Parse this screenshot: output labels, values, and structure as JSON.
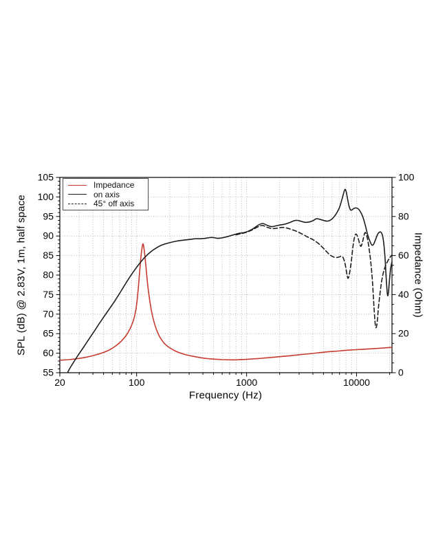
{
  "page": {
    "background": "#ffffff"
  },
  "chart_data": {
    "type": "line",
    "title": "",
    "x_axis": {
      "label": "Frequency (Hz)",
      "scale": "log",
      "min": 20,
      "max": 21000,
      "major_ticks": [
        20,
        100,
        1000,
        10000
      ],
      "tick_labels": [
        "20",
        "100",
        "1000",
        "10000"
      ],
      "grid": true
    },
    "y_axis_left": {
      "label": "SPL (dB) @ 2.83V, 1m, half space",
      "min": 55,
      "max": 105,
      "major_step": 5,
      "minor_step": 1,
      "tick_labels": [
        "55",
        "60",
        "65",
        "70",
        "75",
        "80",
        "85",
        "90",
        "95",
        "100",
        "105"
      ],
      "grid": true
    },
    "y_axis_right": {
      "label": "Impedance (Ohm)",
      "min": 0,
      "max": 100,
      "major_step": 20,
      "minor_step": 5,
      "tick_labels": [
        "0",
        "20",
        "40",
        "60",
        "80",
        "100"
      ]
    },
    "legend": {
      "position": "top-left",
      "border_color": "#4d4d4d",
      "background": "#ffffff"
    },
    "colors": {
      "impedance": "#c63a2f",
      "spl": "#1c1c1c",
      "grid": "#a6a6a6",
      "axis": "#000000"
    },
    "series": [
      {
        "name": "impedance",
        "label": "Impedance",
        "axis": "right",
        "unit": "Ohm",
        "line_style": "solid",
        "color_key": "impedance",
        "points": [
          [
            20,
            6.4
          ],
          [
            24,
            6.7
          ],
          [
            28,
            7.1
          ],
          [
            33,
            7.7
          ],
          [
            38,
            8.4
          ],
          [
            44,
            9.4
          ],
          [
            50,
            10.4
          ],
          [
            57,
            11.8
          ],
          [
            64,
            13.6
          ],
          [
            72,
            16.0
          ],
          [
            80,
            19.0
          ],
          [
            87,
            22.5
          ],
          [
            93,
            26.5
          ],
          [
            97,
            30.5
          ],
          [
            100,
            35.0
          ],
          [
            103,
            42.0
          ],
          [
            106,
            50.5
          ],
          [
            109,
            58.5
          ],
          [
            112,
            64.0
          ],
          [
            114,
            66.0
          ],
          [
            116,
            64.5
          ],
          [
            119,
            59.5
          ],
          [
            122,
            53.0
          ],
          [
            126,
            45.0
          ],
          [
            131,
            37.5
          ],
          [
            137,
            31.0
          ],
          [
            144,
            25.8
          ],
          [
            152,
            21.8
          ],
          [
            162,
            18.4
          ],
          [
            175,
            15.6
          ],
          [
            190,
            13.6
          ],
          [
            210,
            12.0
          ],
          [
            235,
            10.6
          ],
          [
            265,
            9.6
          ],
          [
            300,
            8.8
          ],
          [
            340,
            8.2
          ],
          [
            390,
            7.6
          ],
          [
            450,
            7.2
          ],
          [
            520,
            6.9
          ],
          [
            600,
            6.7
          ],
          [
            700,
            6.6
          ],
          [
            800,
            6.6
          ],
          [
            950,
            6.8
          ],
          [
            1100,
            7.0
          ],
          [
            1300,
            7.3
          ],
          [
            1600,
            7.7
          ],
          [
            2000,
            8.2
          ],
          [
            2500,
            8.7
          ],
          [
            3000,
            9.2
          ],
          [
            3700,
            9.7
          ],
          [
            4500,
            10.2
          ],
          [
            5500,
            10.7
          ],
          [
            6800,
            11.1
          ],
          [
            8200,
            11.5
          ],
          [
            10000,
            11.8
          ],
          [
            12500,
            12.1
          ],
          [
            15000,
            12.4
          ],
          [
            18000,
            12.7
          ],
          [
            21000,
            13.0
          ]
        ]
      },
      {
        "name": "on_axis",
        "label": "on axis",
        "axis": "left",
        "unit": "dB",
        "line_style": "solid",
        "color_key": "spl",
        "points": [
          [
            23.5,
            55.0
          ],
          [
            25,
            56.4
          ],
          [
            27,
            57.9
          ],
          [
            30,
            59.9
          ],
          [
            33,
            61.6
          ],
          [
            36,
            63.2
          ],
          [
            40,
            65.1
          ],
          [
            45,
            67.3
          ],
          [
            50,
            69.2
          ],
          [
            56,
            71.2
          ],
          [
            63,
            73.3
          ],
          [
            71,
            75.6
          ],
          [
            80,
            78.0
          ],
          [
            90,
            80.2
          ],
          [
            100,
            82.0
          ],
          [
            110,
            83.5
          ],
          [
            120,
            84.7
          ],
          [
            135,
            86.0
          ],
          [
            150,
            86.9
          ],
          [
            170,
            87.7
          ],
          [
            200,
            88.3
          ],
          [
            230,
            88.7
          ],
          [
            260,
            88.9
          ],
          [
            300,
            89.1
          ],
          [
            340,
            89.3
          ],
          [
            380,
            89.3
          ],
          [
            420,
            89.4
          ],
          [
            460,
            89.6
          ],
          [
            500,
            89.6
          ],
          [
            545,
            89.4
          ],
          [
            590,
            89.5
          ],
          [
            640,
            89.7
          ],
          [
            700,
            90.0
          ],
          [
            780,
            90.4
          ],
          [
            860,
            90.7
          ],
          [
            950,
            90.9
          ],
          [
            1050,
            91.3
          ],
          [
            1150,
            91.9
          ],
          [
            1280,
            92.8
          ],
          [
            1400,
            93.2
          ],
          [
            1550,
            92.7
          ],
          [
            1700,
            92.4
          ],
          [
            1850,
            92.6
          ],
          [
            2000,
            92.8
          ],
          [
            2200,
            93.0
          ],
          [
            2450,
            93.4
          ],
          [
            2700,
            93.9
          ],
          [
            2900,
            94.0
          ],
          [
            3100,
            93.8
          ],
          [
            3400,
            93.5
          ],
          [
            3700,
            93.6
          ],
          [
            4000,
            93.9
          ],
          [
            4300,
            94.4
          ],
          [
            4600,
            94.3
          ],
          [
            5000,
            94.0
          ],
          [
            5400,
            93.8
          ],
          [
            5800,
            94.1
          ],
          [
            6200,
            94.8
          ],
          [
            6600,
            95.9
          ],
          [
            7000,
            97.3
          ],
          [
            7400,
            99.6
          ],
          [
            7800,
            101.8
          ],
          [
            8000,
            101.6
          ],
          [
            8200,
            100.2
          ],
          [
            8500,
            97.9
          ],
          [
            8800,
            96.7
          ],
          [
            9100,
            96.7
          ],
          [
            9400,
            97.0
          ],
          [
            9800,
            97.2
          ],
          [
            10300,
            97.0
          ],
          [
            10800,
            96.3
          ],
          [
            11400,
            94.9
          ],
          [
            12000,
            92.8
          ],
          [
            12600,
            90.4
          ],
          [
            13200,
            88.7
          ],
          [
            13800,
            87.7
          ],
          [
            14300,
            87.9
          ],
          [
            14800,
            88.9
          ],
          [
            15400,
            90.2
          ],
          [
            16000,
            90.9
          ],
          [
            16600,
            91.0
          ],
          [
            17100,
            90.4
          ],
          [
            17600,
            88.6
          ],
          [
            18100,
            84.9
          ],
          [
            18500,
            80.4
          ],
          [
            18900,
            76.2
          ],
          [
            19200,
            74.7
          ],
          [
            19500,
            75.6
          ],
          [
            19900,
            78.6
          ],
          [
            20400,
            81.6
          ],
          [
            21000,
            83.5
          ]
        ]
      },
      {
        "name": "off_axis_45",
        "label": "45° off axis",
        "axis": "left",
        "unit": "dB",
        "line_style": "dashed",
        "color_key": "spl",
        "points": [
          [
            800,
            90.3
          ],
          [
            950,
            90.8
          ],
          [
            1050,
            91.2
          ],
          [
            1150,
            91.7
          ],
          [
            1280,
            92.4
          ],
          [
            1400,
            92.7
          ],
          [
            1550,
            92.2
          ],
          [
            1700,
            91.9
          ],
          [
            1900,
            92.0
          ],
          [
            2100,
            92.2
          ],
          [
            2350,
            92.0
          ],
          [
            2600,
            91.6
          ],
          [
            2900,
            91.1
          ],
          [
            3200,
            90.5
          ],
          [
            3500,
            89.9
          ],
          [
            3800,
            89.4
          ],
          [
            4100,
            88.9
          ],
          [
            4500,
            88.1
          ],
          [
            4900,
            87.1
          ],
          [
            5300,
            86.1
          ],
          [
            5700,
            85.2
          ],
          [
            6100,
            84.7
          ],
          [
            6500,
            84.5
          ],
          [
            6900,
            84.6
          ],
          [
            7300,
            84.8
          ],
          [
            7600,
            84.3
          ],
          [
            7900,
            82.6
          ],
          [
            8200,
            80.0
          ],
          [
            8400,
            79.2
          ],
          [
            8700,
            81.0
          ],
          [
            9000,
            84.0
          ],
          [
            9300,
            87.5
          ],
          [
            9600,
            89.8
          ],
          [
            9900,
            90.5
          ],
          [
            10300,
            89.6
          ],
          [
            10700,
            87.9
          ],
          [
            11000,
            87.4
          ],
          [
            11400,
            88.8
          ],
          [
            11800,
            90.6
          ],
          [
            12100,
            90.8
          ],
          [
            12500,
            89.6
          ],
          [
            12900,
            87.4
          ],
          [
            13400,
            83.9
          ],
          [
            13900,
            78.9
          ],
          [
            14400,
            71.9
          ],
          [
            14800,
            67.3
          ],
          [
            15100,
            66.6
          ],
          [
            15400,
            68.0
          ],
          [
            15800,
            71.5
          ],
          [
            16300,
            75.0
          ],
          [
            16800,
            77.9
          ],
          [
            17400,
            80.2
          ],
          [
            18000,
            81.7
          ],
          [
            18700,
            82.9
          ],
          [
            19400,
            83.8
          ],
          [
            20100,
            84.5
          ],
          [
            21000,
            85.2
          ]
        ]
      }
    ]
  }
}
